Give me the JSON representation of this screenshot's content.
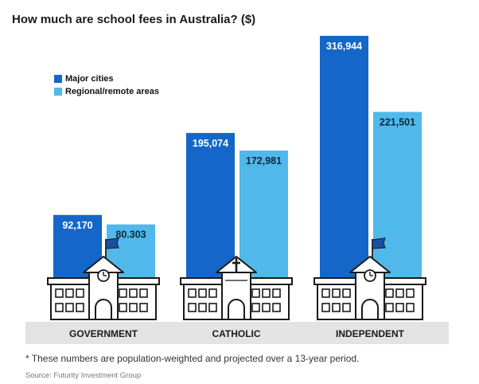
{
  "title": "How much are school fees in Australia? ($)",
  "footnote": "* These numbers are population-weighted and projected over a 13-year period.",
  "source": "Source: Futurity Investment Group",
  "colors": {
    "major": "#1467c8",
    "regional": "#50b8ea",
    "ground": "#e3e3e3"
  },
  "chart_data": {
    "type": "bar",
    "categories": [
      "GOVERNMENT",
      "CATHOLIC",
      "INDEPENDENT"
    ],
    "series": [
      {
        "name": "Major cities",
        "values": [
          92170,
          195074,
          316944
        ],
        "labels": [
          "92,170",
          "195,074",
          "316,944"
        ]
      },
      {
        "name": "Regional/remote areas",
        "values": [
          80303,
          172981,
          221501
        ],
        "labels": [
          "80.303",
          "172,981",
          "221,501"
        ]
      }
    ],
    "legend": "top-left",
    "ylim": [
      0,
      316944
    ],
    "grid": false
  }
}
